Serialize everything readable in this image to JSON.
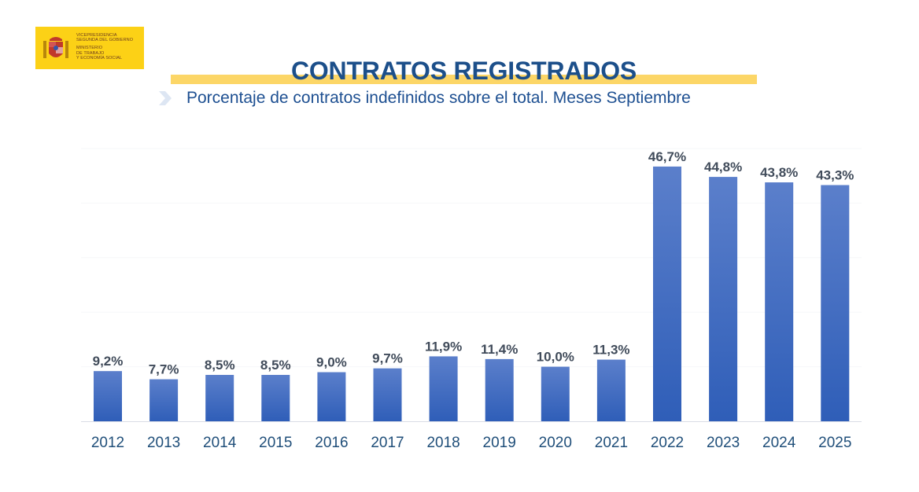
{
  "header": {
    "logo": {
      "lines_top": [
        "Vicepresidencia",
        "Segunda del Gobierno"
      ],
      "lines_bottom": [
        "Ministerio",
        "de Trabajo",
        "y Economía Social"
      ],
      "background_color": "#fcd116"
    },
    "title": "CONTRATOS REGISTRADOS",
    "subtitle": "Porcentaje de contratos indefinidos sobre el total. Meses Septiembre",
    "title_color": "#1c4f8a",
    "band_color": "#fcd667"
  },
  "chart_data": {
    "type": "bar",
    "title": "CONTRATOS REGISTRADOS",
    "subtitle": "Porcentaje de contratos indefinidos sobre el total. Meses Septiembre",
    "xlabel": "",
    "ylabel": "",
    "categories": [
      "2012",
      "2013",
      "2014",
      "2015",
      "2016",
      "2017",
      "2018",
      "2019",
      "2020",
      "2021",
      "2022",
      "2023",
      "2024",
      "2025"
    ],
    "values": [
      9.2,
      7.7,
      8.5,
      8.5,
      9.0,
      9.7,
      11.9,
      11.4,
      10.0,
      11.3,
      46.7,
      44.8,
      43.8,
      43.3
    ],
    "data_labels": [
      "9,2%",
      "7,7%",
      "8,5%",
      "8,5%",
      "9,0%",
      "9,7%",
      "11,9%",
      "11,4%",
      "10,0%",
      "11,3%",
      "46,7%",
      "44,8%",
      "43,8%",
      "43,3%"
    ],
    "ylim": [
      0,
      50
    ],
    "grid": true,
    "legend": "none",
    "bar_color_top": "#5b7fcb",
    "bar_color_bottom": "#2f5eb8"
  }
}
